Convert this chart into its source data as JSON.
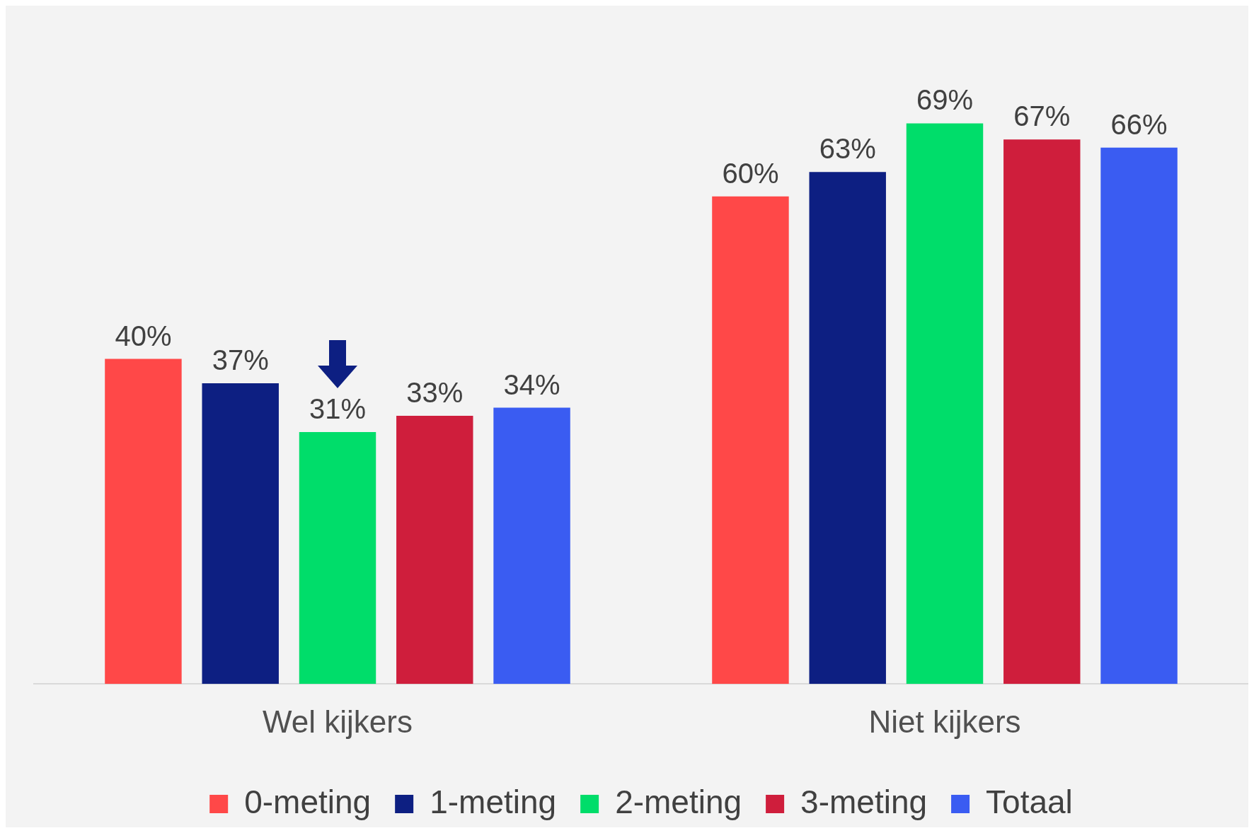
{
  "chart_data": {
    "type": "bar",
    "categories": [
      "Wel kijkers",
      "Niet kijkers"
    ],
    "series": [
      {
        "name": "0-meting",
        "color": "#ff4848",
        "values": [
          40,
          60
        ],
        "value_labels": [
          "40%",
          "60%"
        ]
      },
      {
        "name": "1-meting",
        "color": "#0d1f82",
        "values": [
          37,
          63
        ],
        "value_labels": [
          "37%",
          "63%"
        ]
      },
      {
        "name": "2-meting",
        "color": "#00dd6a",
        "values": [
          31,
          69
        ],
        "value_labels": [
          "31%",
          "69%"
        ]
      },
      {
        "name": "3-meting",
        "color": "#cf1e3c",
        "values": [
          33,
          67
        ],
        "value_labels": [
          "33%",
          "67%"
        ]
      },
      {
        "name": "Totaal",
        "color": "#3a5cf2",
        "values": [
          34,
          66
        ],
        "value_labels": [
          "34%",
          "66%"
        ]
      }
    ],
    "tick_labels": "x",
    "legend": "bottom"
  }
}
